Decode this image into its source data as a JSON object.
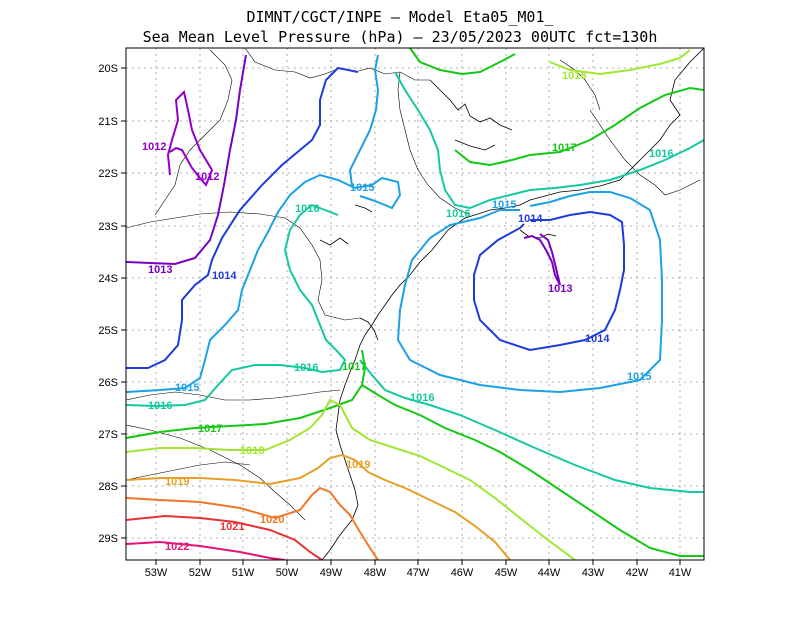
{
  "title": {
    "line1": "DIMNT/CGCT/INPE —  Model Eta05_M01_",
    "line2": "Sea Mean Level Pressure (hPa) — 23/05/2023 00UTC fct=130h"
  },
  "axes": {
    "lat_labels": [
      "20S",
      "21S",
      "22S",
      "23S",
      "24S",
      "25S",
      "26S",
      "27S",
      "28S",
      "29S"
    ],
    "lon_labels": [
      "53W",
      "52W",
      "51W",
      "50W",
      "49W",
      "48W",
      "47W",
      "46W",
      "45W",
      "44W",
      "43W",
      "42W",
      "41W"
    ]
  },
  "contours": [
    {
      "value": "1012",
      "color": "#9400c8"
    },
    {
      "value": "1013",
      "color": "#7a00c0"
    },
    {
      "value": "1014",
      "color": "#1e3cdc"
    },
    {
      "value": "1015",
      "color": "#1ea0e6"
    },
    {
      "value": "1016",
      "color": "#14c8a0"
    },
    {
      "value": "1017",
      "color": "#14c814"
    },
    {
      "value": "1018",
      "color": "#a0e632"
    },
    {
      "value": "1019",
      "color": "#e6a028"
    },
    {
      "value": "1020",
      "color": "#f07828"
    },
    {
      "value": "1021",
      "color": "#e63232"
    },
    {
      "value": "1022",
      "color": "#e61478"
    }
  ],
  "contour_labels": {
    "c1012a": "1012",
    "c1012b": "1012",
    "c1013a": "1013",
    "c1013b": "1013",
    "c1014a": "1014",
    "c1014b": "1014",
    "c1014c": "1014",
    "c1015a": "1015",
    "c1015b": "1015",
    "c1015c": "1015",
    "c1015d": "1015",
    "c1016a": "1016",
    "c1016b": "1016",
    "c1016c": "1016",
    "c1016d": "1016",
    "c1016e": "1016",
    "c1016f": "1016",
    "c1017a": "1017",
    "c1017b": "1017",
    "c1017c": "1017",
    "c1018a": "1018",
    "c1018b": "1018",
    "c1019a": "1019",
    "c1019b": "1019",
    "c1020a": "1020",
    "c1021a": "1021",
    "c1022a": "1022"
  }
}
